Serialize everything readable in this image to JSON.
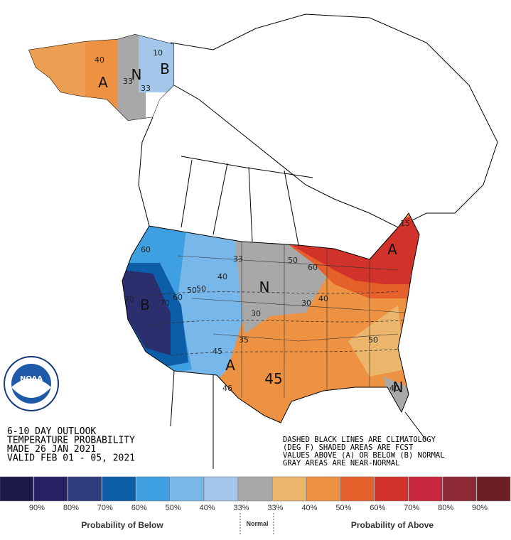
{
  "header": {
    "lines": [
      "6-10 DAY OUTLOOK",
      "TEMPERATURE PROBABILITY",
      "MADE  26 JAN 2021",
      "VALID  FEB 01 - 05, 2021"
    ]
  },
  "notes": [
    "DASHED BLACK LINES ARE CLIMATOLOGY",
    "(DEG F) SHADED AREAS ARE FCST",
    "VALUES ABOVE (A) OR BELOW (B) NORMAL",
    "GRAY AREAS ARE NEAR-NORMAL"
  ],
  "logo": "NOAA",
  "map_labels": [
    "40",
    "33",
    "33",
    "B",
    "A",
    "N",
    "10",
    "60",
    "50",
    "70",
    "B",
    "70",
    "60",
    "50",
    "40",
    "33",
    "N",
    "30",
    "40",
    "50",
    "60",
    "A",
    "15",
    "30",
    "35",
    "A",
    "45",
    "46",
    "45",
    "50",
    "40",
    "N"
  ],
  "legend": {
    "colors": [
      "#1c1a48",
      "#262163",
      "#2d3c7c",
      "#0d5ea8",
      "#3ea0e0",
      "#78b7ea",
      "#a3c6ea",
      "#a8a8a8",
      "#ebb56b",
      "#ed9242",
      "#e5602b",
      "#d1322a",
      "#c8283f",
      "#8e2a36",
      "#6c1f25"
    ],
    "labels": [
      "90%",
      "80%",
      "70%",
      "60%",
      "50%",
      "40%",
      "33%",
      "33%",
      "40%",
      "50%",
      "60%",
      "70%",
      "80%",
      "90%"
    ],
    "below": "Probability of Below",
    "normal": "Normal",
    "above": "Probability of Above"
  }
}
